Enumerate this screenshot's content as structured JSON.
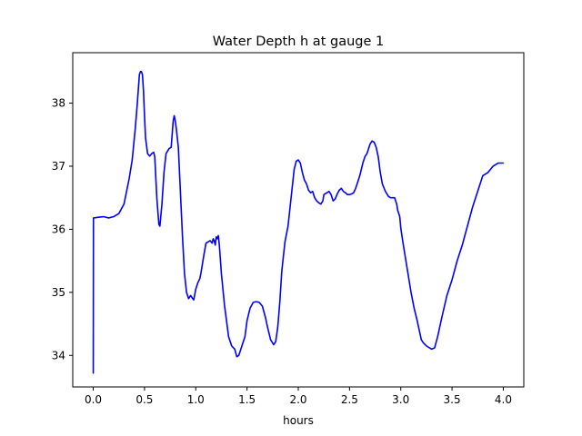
{
  "chart_data": {
    "type": "line",
    "title": "Water Depth h at gauge 1",
    "xlabel": "hours",
    "ylabel": "",
    "xlim": [
      -0.2,
      4.2
    ],
    "ylim": [
      33.5,
      38.8
    ],
    "xticks": [
      {
        "value": 0.0,
        "label": "0.0"
      },
      {
        "value": 0.5,
        "label": "0.5"
      },
      {
        "value": 1.0,
        "label": "1.0"
      },
      {
        "value": 1.5,
        "label": "1.5"
      },
      {
        "value": 2.0,
        "label": "2.0"
      },
      {
        "value": 2.5,
        "label": "2.5"
      },
      {
        "value": 3.0,
        "label": "3.0"
      },
      {
        "value": 3.5,
        "label": "3.5"
      },
      {
        "value": 4.0,
        "label": "4.0"
      }
    ],
    "yticks": [
      {
        "value": 34,
        "label": "34"
      },
      {
        "value": 35,
        "label": "35"
      },
      {
        "value": 36,
        "label": "36"
      },
      {
        "value": 37,
        "label": "37"
      },
      {
        "value": 38,
        "label": "38"
      }
    ],
    "grid": false,
    "legend": "none",
    "series": [
      {
        "color": "#0000ff",
        "x": [
          0.0,
          0.002,
          0.005,
          0.05,
          0.1,
          0.15,
          0.2,
          0.25,
          0.3,
          0.35,
          0.38,
          0.41,
          0.43,
          0.45,
          0.46,
          0.47,
          0.48,
          0.49,
          0.5,
          0.51,
          0.53,
          0.55,
          0.57,
          0.59,
          0.6,
          0.62,
          0.64,
          0.65,
          0.67,
          0.69,
          0.71,
          0.74,
          0.76,
          0.78,
          0.79,
          0.8,
          0.81,
          0.83,
          0.85,
          0.87,
          0.89,
          0.91,
          0.93,
          0.95,
          0.97,
          0.98,
          1.0,
          1.02,
          1.04,
          1.05,
          1.06,
          1.08,
          1.1,
          1.12,
          1.14,
          1.16,
          1.17,
          1.18,
          1.19,
          1.2,
          1.21,
          1.22,
          1.23,
          1.25,
          1.28,
          1.32,
          1.35,
          1.38,
          1.4,
          1.42,
          1.45,
          1.48,
          1.5,
          1.53,
          1.56,
          1.58,
          1.6,
          1.62,
          1.65,
          1.68,
          1.7,
          1.73,
          1.76,
          1.78,
          1.8,
          1.82,
          1.84,
          1.87,
          1.9,
          1.93,
          1.96,
          1.98,
          2.0,
          2.02,
          2.04,
          2.06,
          2.08,
          2.1,
          2.12,
          2.14,
          2.16,
          2.18,
          2.2,
          2.22,
          2.24,
          2.25,
          2.27,
          2.28,
          2.3,
          2.32,
          2.34,
          2.36,
          2.38,
          2.4,
          2.42,
          2.44,
          2.46,
          2.48,
          2.5,
          2.52,
          2.54,
          2.56,
          2.58,
          2.6,
          2.63,
          2.65,
          2.67,
          2.7,
          2.72,
          2.74,
          2.76,
          2.78,
          2.8,
          2.82,
          2.85,
          2.88,
          2.9,
          2.92,
          2.94,
          2.96,
          2.97,
          2.99,
          3.0,
          3.02,
          3.05,
          3.08,
          3.1,
          3.13,
          3.16,
          3.18,
          3.2,
          3.22,
          3.25,
          3.28,
          3.3,
          3.33,
          3.36,
          3.4,
          3.45,
          3.5,
          3.55,
          3.6,
          3.65,
          3.7,
          3.75,
          3.8,
          3.85,
          3.9,
          3.95,
          4.0
        ],
        "y": [
          33.72,
          36.18,
          36.18,
          36.19,
          36.2,
          36.18,
          36.2,
          36.25,
          36.4,
          36.8,
          37.1,
          37.6,
          38.0,
          38.45,
          38.5,
          38.5,
          38.45,
          38.2,
          37.8,
          37.45,
          37.2,
          37.16,
          37.2,
          37.22,
          37.15,
          36.5,
          36.08,
          36.05,
          36.4,
          36.9,
          37.2,
          37.28,
          37.3,
          37.72,
          37.8,
          37.72,
          37.6,
          37.3,
          36.6,
          35.9,
          35.3,
          35.0,
          34.9,
          34.95,
          34.9,
          34.88,
          35.05,
          35.15,
          35.22,
          35.3,
          35.4,
          35.6,
          35.78,
          35.8,
          35.82,
          35.78,
          35.85,
          35.82,
          35.75,
          35.88,
          35.85,
          35.9,
          35.75,
          35.3,
          34.8,
          34.3,
          34.15,
          34.1,
          33.98,
          34.0,
          34.15,
          34.3,
          34.55,
          34.75,
          34.84,
          34.85,
          34.85,
          34.84,
          34.78,
          34.6,
          34.45,
          34.25,
          34.17,
          34.22,
          34.45,
          34.85,
          35.35,
          35.8,
          36.05,
          36.5,
          36.95,
          37.08,
          37.1,
          37.05,
          36.9,
          36.78,
          36.72,
          36.62,
          36.58,
          36.6,
          36.5,
          36.45,
          36.42,
          36.4,
          36.45,
          36.55,
          36.57,
          36.58,
          36.6,
          36.55,
          36.45,
          36.48,
          36.56,
          36.62,
          36.65,
          36.6,
          36.58,
          36.55,
          36.55,
          36.56,
          36.58,
          36.65,
          36.75,
          36.85,
          37.05,
          37.15,
          37.2,
          37.35,
          37.4,
          37.38,
          37.3,
          37.15,
          36.9,
          36.72,
          36.6,
          36.52,
          36.5,
          36.5,
          36.5,
          36.4,
          36.3,
          36.2,
          36.02,
          35.8,
          35.5,
          35.2,
          35.0,
          34.75,
          34.55,
          34.4,
          34.25,
          34.2,
          34.15,
          34.12,
          34.1,
          34.12,
          34.3,
          34.6,
          34.95,
          35.2,
          35.5,
          35.75,
          36.05,
          36.35,
          36.6,
          36.85,
          36.9,
          37.0,
          37.05,
          37.05
        ]
      }
    ]
  }
}
